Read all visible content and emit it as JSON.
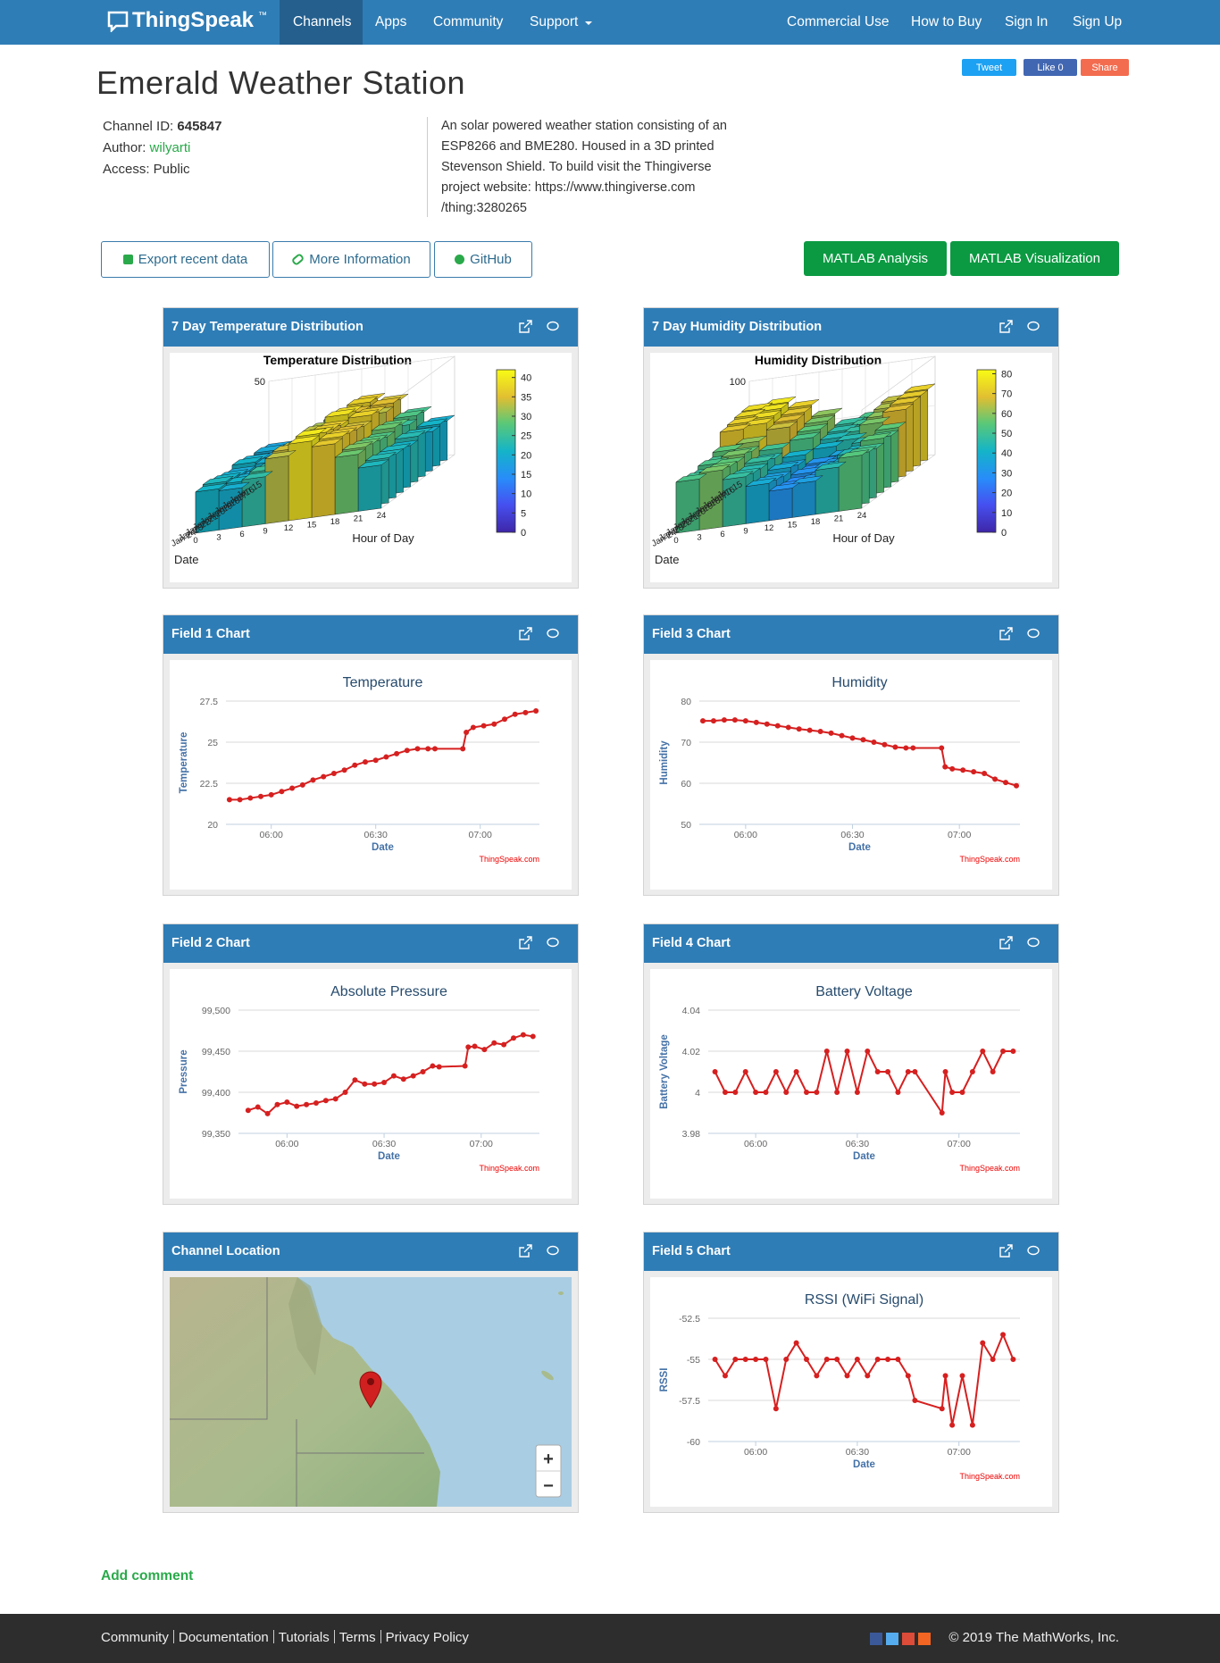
{
  "nav": {
    "brand": "ThingSpeak",
    "trademark": "™",
    "left": [
      "Channels",
      "Apps",
      "Community",
      "Support"
    ],
    "right": [
      "Commercial Use",
      "How to Buy",
      "Sign In",
      "Sign Up"
    ]
  },
  "social": [
    "Tweet",
    "Like 0",
    "Share"
  ],
  "header": {
    "title": "Emerald Weather Station",
    "channel_id_label": "Channel ID:",
    "channel_id": "645847",
    "author_label": "Author:",
    "author": "wilyarti",
    "access": "Access: Public",
    "description": [
      "An solar powered weather station consisting of an",
      "ESP8266 and BME280. Housed in a 3D printed",
      "Stevenson Shield. To build visit the Thingiverse",
      "project website: https://www.thingiverse.com",
      "/thing:3280265"
    ]
  },
  "buttons": [
    "Export recent data",
    "More Information",
    "GitHub"
  ],
  "matlab_buttons": [
    "MATLAB Analysis",
    "MATLAB Visualization"
  ],
  "panels": [
    "7 Day Temperature Distribution",
    "7 Day Humidity Distribution",
    "Field 1 Chart",
    "Field 3 Chart",
    "Field 2 Chart",
    "Field 4 Chart",
    "Channel Location",
    "Field 5 Chart"
  ],
  "map": {
    "zoom_in": "+",
    "zoom_out": "−"
  },
  "chart_data": [
    {
      "type": "bar3d",
      "title": "Temperature Distribution",
      "xlabel": "Hour of Day",
      "ylabel": "Date",
      "x": [
        0,
        3,
        6,
        9,
        12,
        15,
        18,
        21
      ],
      "xlim": [
        0,
        24
      ],
      "xticks": [
        0,
        3,
        6,
        9,
        12,
        15,
        18,
        21,
        24
      ],
      "categories": [
        "Jan 15",
        "Jan 16",
        "Jan 17",
        "Jan 18",
        "Jan 19",
        "Jan 20",
        "Jan 21",
        "Jan 22",
        "Jan 23",
        "Jan 24"
      ],
      "values": [
        [
          18,
          17,
          21,
          30,
          36,
          34,
          26,
          20
        ],
        [
          19,
          18,
          22,
          31,
          37,
          35,
          27,
          21
        ],
        [
          18,
          17,
          20,
          29,
          35,
          33,
          25,
          20
        ],
        [
          20,
          19,
          23,
          32,
          38,
          36,
          28,
          22
        ],
        [
          21,
          20,
          24,
          33,
          39,
          37,
          29,
          23
        ],
        [
          19,
          18,
          22,
          30,
          36,
          34,
          27,
          21
        ],
        [
          20,
          19,
          23,
          31,
          37,
          35,
          28,
          22
        ],
        [
          21,
          20,
          24,
          33,
          38,
          36,
          29,
          22
        ],
        [
          22,
          21,
          25,
          34,
          40,
          37,
          30,
          23
        ],
        [
          21,
          20,
          24,
          33,
          39,
          36,
          29,
          22
        ]
      ],
      "zlim": [
        0,
        50
      ],
      "zticks": [
        50
      ],
      "clim": [
        0,
        42
      ],
      "cticks": [
        0,
        5,
        10,
        15,
        20,
        25,
        30,
        35,
        40
      ]
    },
    {
      "type": "bar3d",
      "title": "Humidity Distribution",
      "xlabel": "Hour of Day",
      "ylabel": "Date",
      "x": [
        0,
        3,
        6,
        9,
        12,
        15,
        18,
        21
      ],
      "xlim": [
        0,
        24
      ],
      "xticks": [
        0,
        3,
        6,
        9,
        12,
        15,
        18,
        21,
        24
      ],
      "categories": [
        "Jan 15",
        "Jan 16",
        "Jan 17",
        "Jan 18",
        "Jan 19",
        "Jan 20",
        "Jan 21",
        "Jan 22",
        "Jan 23",
        "Jan 24"
      ],
      "values": [
        [
          75,
          78,
          72,
          60,
          48,
          52,
          65,
          72
        ],
        [
          74,
          77,
          70,
          58,
          46,
          50,
          63,
          71
        ],
        [
          72,
          75,
          68,
          55,
          44,
          48,
          60,
          70
        ],
        [
          70,
          73,
          66,
          52,
          40,
          45,
          58,
          68
        ],
        [
          55,
          60,
          50,
          40,
          30,
          35,
          45,
          55
        ],
        [
          50,
          55,
          45,
          35,
          28,
          32,
          42,
          52
        ],
        [
          52,
          58,
          48,
          38,
          30,
          34,
          44,
          55
        ],
        [
          48,
          55,
          45,
          34,
          27,
          30,
          40,
          50
        ],
        [
          50,
          56,
          46,
          36,
          28,
          32,
          42,
          52
        ],
        [
          52,
          58,
          48,
          38,
          30,
          34,
          45,
          54
        ]
      ],
      "zlim": [
        0,
        100
      ],
      "zticks": [
        50,
        100
      ],
      "clim": [
        0,
        82
      ],
      "cticks": [
        0,
        10,
        20,
        30,
        40,
        50,
        60,
        70,
        80
      ]
    },
    {
      "type": "line",
      "title": "Temperature",
      "xlabel": "Date",
      "ylabel": "Temperature",
      "credit": "ThingSpeak.com",
      "color": "#d62020",
      "grid": true,
      "x": [
        "05:48",
        "05:51",
        "05:54",
        "05:57",
        "06:00",
        "06:03",
        "06:06",
        "06:09",
        "06:12",
        "06:15",
        "06:18",
        "06:21",
        "06:24",
        "06:27",
        "06:30",
        "06:33",
        "06:36",
        "06:39",
        "06:42",
        "06:45",
        "06:47",
        "06:55",
        "06:56",
        "06:58",
        "07:01",
        "07:04",
        "07:07",
        "07:10",
        "07:13",
        "07:16"
      ],
      "values": [
        21.5,
        21.5,
        21.6,
        21.7,
        21.8,
        22.0,
        22.2,
        22.4,
        22.7,
        22.9,
        23.1,
        23.3,
        23.6,
        23.8,
        23.9,
        24.1,
        24.3,
        24.5,
        24.6,
        24.6,
        24.6,
        24.6,
        25.6,
        25.9,
        26.0,
        26.1,
        26.4,
        26.7,
        26.8,
        26.9
      ],
      "xlim": [
        "05:47",
        "07:17"
      ],
      "xticks": [
        "06:00",
        "06:30",
        "07:00"
      ],
      "ylim": [
        20,
        27.5
      ],
      "yticks": [
        20,
        22.5,
        25,
        27.5
      ]
    },
    {
      "type": "line",
      "title": "Humidity",
      "xlabel": "Date",
      "ylabel": "Humidity",
      "credit": "ThingSpeak.com",
      "color": "#d62020",
      "grid": true,
      "x": [
        "05:48",
        "05:51",
        "05:54",
        "05:57",
        "06:00",
        "06:03",
        "06:06",
        "06:09",
        "06:12",
        "06:15",
        "06:18",
        "06:21",
        "06:24",
        "06:27",
        "06:30",
        "06:33",
        "06:36",
        "06:39",
        "06:42",
        "06:45",
        "06:47",
        "06:55",
        "06:56",
        "06:58",
        "07:01",
        "07:04",
        "07:07",
        "07:10",
        "07:13",
        "07:16"
      ],
      "values": [
        75.2,
        75.2,
        75.4,
        75.4,
        75.2,
        74.8,
        74.4,
        74.0,
        73.6,
        73.2,
        72.9,
        72.6,
        72.2,
        71.6,
        71.0,
        70.6,
        70.0,
        69.4,
        68.8,
        68.6,
        68.6,
        68.6,
        64.0,
        63.5,
        63.2,
        62.8,
        62.4,
        61.0,
        60.2,
        59.4
      ],
      "xlim": [
        "05:47",
        "07:17"
      ],
      "xticks": [
        "06:00",
        "06:30",
        "07:00"
      ],
      "ylim": [
        50,
        80
      ],
      "yticks": [
        50,
        60,
        70,
        80
      ]
    },
    {
      "type": "line",
      "title": "Absolute Pressure",
      "xlabel": "Date",
      "ylabel": "Pressure",
      "credit": "ThingSpeak.com",
      "color": "#d62020",
      "grid": true,
      "x": [
        "05:48",
        "05:51",
        "05:54",
        "05:57",
        "06:00",
        "06:03",
        "06:06",
        "06:09",
        "06:12",
        "06:15",
        "06:18",
        "06:21",
        "06:24",
        "06:27",
        "06:30",
        "06:33",
        "06:36",
        "06:39",
        "06:42",
        "06:45",
        "06:47",
        "06:55",
        "06:56",
        "06:58",
        "07:01",
        "07:04",
        "07:07",
        "07:10",
        "07:13",
        "07:16"
      ],
      "values": [
        99378,
        99382,
        99374,
        99385,
        99388,
        99383,
        99385,
        99387,
        99390,
        99392,
        99400,
        99415,
        99410,
        99410,
        99412,
        99420,
        99416,
        99420,
        99425,
        99432,
        99431,
        99432,
        99455,
        99456,
        99452,
        99460,
        99458,
        99466,
        99470,
        99468
      ],
      "xlim": [
        "05:45",
        "07:18"
      ],
      "xticks": [
        "06:00",
        "06:30",
        "07:00"
      ],
      "ylim": [
        99350,
        99500
      ],
      "yticks": [
        {
          "value": 99350,
          "label": "99,350"
        },
        {
          "value": 99400,
          "label": "99,400"
        },
        {
          "value": 99450,
          "label": "99,450"
        },
        {
          "value": 99500,
          "label": "99,500"
        }
      ]
    },
    {
      "type": "line",
      "title": "Battery Voltage",
      "xlabel": "Date",
      "ylabel": "Battery Voltage",
      "credit": "ThingSpeak.com",
      "color": "#d62020",
      "grid": true,
      "x": [
        "05:48",
        "05:51",
        "05:54",
        "05:57",
        "06:00",
        "06:03",
        "06:06",
        "06:09",
        "06:12",
        "06:15",
        "06:18",
        "06:21",
        "06:24",
        "06:27",
        "06:30",
        "06:33",
        "06:36",
        "06:39",
        "06:42",
        "06:45",
        "06:47",
        "06:55",
        "06:56",
        "06:58",
        "07:01",
        "07:04",
        "07:07",
        "07:10",
        "07:13",
        "07:16"
      ],
      "values": [
        4.01,
        4,
        4,
        4.01,
        4,
        4,
        4.01,
        4,
        4.01,
        4,
        4,
        4.02,
        4,
        4.02,
        4,
        4.02,
        4.01,
        4.01,
        4,
        4.01,
        4.01,
        3.99,
        4.01,
        4,
        4,
        4.01,
        4.02,
        4.01,
        4.02,
        4.02
      ],
      "xlim": [
        "05:46",
        "07:18"
      ],
      "xticks": [
        "06:00",
        "06:30",
        "07:00"
      ],
      "ylim": [
        3.98,
        4.04
      ],
      "yticks": [
        3.98,
        4,
        4.02,
        4.04
      ]
    },
    {
      "type": "line",
      "title": "RSSI (WiFi Signal)",
      "xlabel": "Date",
      "ylabel": "RSSI",
      "credit": "ThingSpeak.com",
      "color": "#d62020",
      "grid": true,
      "x": [
        "05:48",
        "05:51",
        "05:54",
        "05:57",
        "06:00",
        "06:03",
        "06:06",
        "06:09",
        "06:12",
        "06:15",
        "06:18",
        "06:21",
        "06:24",
        "06:27",
        "06:30",
        "06:33",
        "06:36",
        "06:39",
        "06:42",
        "06:45",
        "06:47",
        "06:55",
        "06:56",
        "06:58",
        "07:01",
        "07:04",
        "07:07",
        "07:10",
        "07:13",
        "07:16"
      ],
      "values": [
        -55,
        -56,
        -55,
        -55,
        -55,
        -55,
        -58,
        -55,
        -54,
        -55,
        -56,
        -55,
        -55,
        -56,
        -55,
        -56,
        -55,
        -55,
        -55,
        -56,
        -57.5,
        -58,
        -56,
        -59,
        -56,
        -59,
        -54,
        -55,
        -53.5,
        -55
      ],
      "xlim": [
        "05:46",
        "07:18"
      ],
      "xticks": [
        "06:00",
        "06:30",
        "07:00"
      ],
      "ylim": [
        -60,
        -52.5
      ],
      "yticks": [
        -60,
        -57.5,
        -55,
        -52.5
      ]
    }
  ],
  "add_comment": "Add comment",
  "footer": {
    "links": [
      "Community",
      "Documentation",
      "Tutorials",
      "Terms",
      "Privacy Policy"
    ],
    "copyright": "© 2019 The MathWorks, Inc."
  }
}
